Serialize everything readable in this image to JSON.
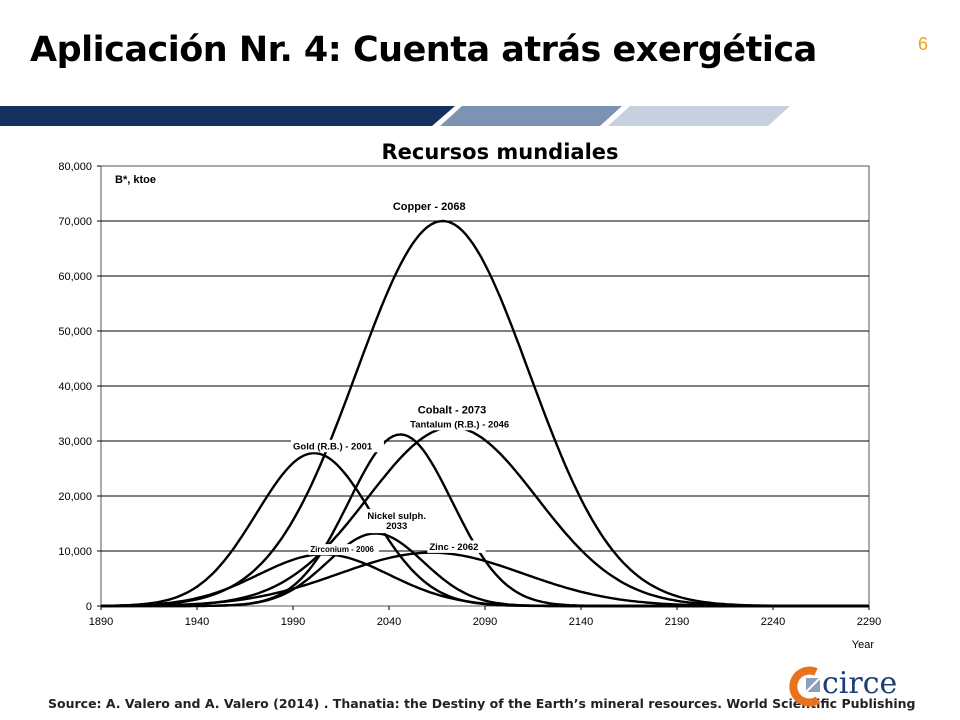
{
  "slide": {
    "title": "Aplicación Nr. 4: Cuenta atrás exergética",
    "page_number": "6",
    "source": "Source: A. Valero and A. Valero (2014) . Thanatia: the Destiny of the Earth’s mineral resources. World Scientific Publishing",
    "logo_text": "circe",
    "colors": {
      "page_number": "#e8a317",
      "band_dark": "#13305f",
      "band_mid": "#7d93b4",
      "band_light": "#c6d0de",
      "logo_orange": "#e8731d",
      "logo_blue": "#1c3f73"
    }
  },
  "chart_data": {
    "type": "line",
    "title": "Recursos mundiales",
    "ylabel": "B*, ktoe",
    "xlabel": "Year",
    "xlim": [
      1890,
      2290
    ],
    "ylim": [
      0,
      80000
    ],
    "x_ticks": [
      "1890",
      "1940",
      "1990",
      "2040",
      "2090",
      "2140",
      "2190",
      "2240",
      "2290"
    ],
    "y_ticks": [
      "0",
      "10,000",
      "20,000",
      "30,000",
      "40,000",
      "50,000",
      "60,000",
      "70,000",
      "80,000"
    ],
    "grid": "horizontal",
    "series": [
      {
        "name": "Copper - 2068",
        "peak_year": 2068,
        "peak_value": 70000,
        "width": 45,
        "label_year": 2042,
        "label_value": 72000
      },
      {
        "name": "Cobalt - 2073",
        "peak_year": 2073,
        "peak_value": 32500,
        "width": 44,
        "label_year": 2055,
        "label_value": 35000
      },
      {
        "name": "Tantalum (R.B.) - 2046",
        "peak_year": 2046,
        "peak_value": 31200,
        "width": 27,
        "label_year": 2051,
        "label_value": 32500
      },
      {
        "name": "Gold (R.B.) - 2001",
        "peak_year": 2001,
        "peak_value": 27800,
        "width": 30,
        "label_year": 1990,
        "label_value": 28500
      },
      {
        "name": "Nickel sulph.",
        "name_line2": "2033",
        "peak_year": 2033,
        "peak_value": 13200,
        "width": 25,
        "label_year": 2044,
        "label_value": 15800
      },
      {
        "name": "Zirconium - 2006",
        "peak_year": 2006,
        "peak_value": 9400,
        "width": 34,
        "label_year": 1999,
        "label_value": 9800
      },
      {
        "name": "Zinc - 2062",
        "peak_year": 2062,
        "peak_value": 9700,
        "width": 48,
        "label_year": 2061,
        "label_value": 10200
      }
    ]
  }
}
